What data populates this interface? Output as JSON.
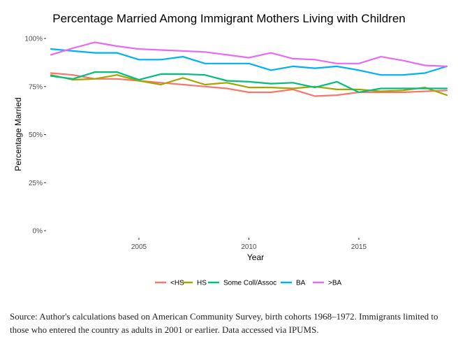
{
  "chart_data": {
    "type": "line",
    "title": "Percentage Married Among Immigrant Mothers Living with Children",
    "xlabel": "Year",
    "ylabel": "Percentage Married",
    "x": [
      2001,
      2002,
      2003,
      2004,
      2005,
      2006,
      2007,
      2008,
      2009,
      2010,
      2011,
      2012,
      2013,
      2014,
      2015,
      2016,
      2017,
      2018,
      2019
    ],
    "xlim": [
      2001,
      2019
    ],
    "ylim": [
      0,
      1
    ],
    "x_ticks": [
      {
        "value": 2005,
        "label": "2005"
      },
      {
        "value": 2010,
        "label": "2010"
      },
      {
        "value": 2015,
        "label": "2015"
      }
    ],
    "y_ticks": [
      {
        "value": 0,
        "label": "0%"
      },
      {
        "value": 0.25,
        "label": "25%"
      },
      {
        "value": 0.5,
        "label": "50%"
      },
      {
        "value": 0.75,
        "label": "75%"
      },
      {
        "value": 1,
        "label": "100%"
      }
    ],
    "grid": false,
    "legend_position": "bottom",
    "series": [
      {
        "name": "<HS",
        "color": "#F8766D",
        "values": [
          0.82,
          0.81,
          0.79,
          0.79,
          0.78,
          0.77,
          0.76,
          0.75,
          0.74,
          0.72,
          0.72,
          0.735,
          0.7,
          0.705,
          0.72,
          0.72,
          0.72,
          0.725,
          0.73
        ]
      },
      {
        "name": "HS",
        "color": "#A3A500",
        "values": [
          0.81,
          0.785,
          0.79,
          0.81,
          0.78,
          0.76,
          0.795,
          0.76,
          0.77,
          0.745,
          0.745,
          0.74,
          0.75,
          0.735,
          0.735,
          0.725,
          0.73,
          0.745,
          0.705
        ]
      },
      {
        "name": "Some Coll/Assoc",
        "color": "#00BF7D",
        "values": [
          0.805,
          0.79,
          0.825,
          0.825,
          0.785,
          0.815,
          0.815,
          0.81,
          0.78,
          0.775,
          0.765,
          0.77,
          0.745,
          0.775,
          0.72,
          0.74,
          0.74,
          0.74,
          0.74
        ]
      },
      {
        "name": "BA",
        "color": "#00B0F6",
        "values": [
          0.945,
          0.935,
          0.925,
          0.925,
          0.89,
          0.89,
          0.905,
          0.87,
          0.87,
          0.87,
          0.835,
          0.855,
          0.845,
          0.855,
          0.835,
          0.81,
          0.81,
          0.82,
          0.855
        ]
      },
      {
        "name": ">BA",
        "color": "#E76BF3",
        "values": [
          0.915,
          0.95,
          0.98,
          0.96,
          0.945,
          0.94,
          0.935,
          0.93,
          0.915,
          0.9,
          0.925,
          0.895,
          0.89,
          0.87,
          0.87,
          0.905,
          0.885,
          0.86,
          0.855
        ]
      }
    ]
  },
  "caption": "Source: Author's calculations based on American Community Survey, birth cohorts 1968–1972. Immigrants limited to those who entered the country as adults in 2001 or earlier. Data accessed via IPUMS."
}
